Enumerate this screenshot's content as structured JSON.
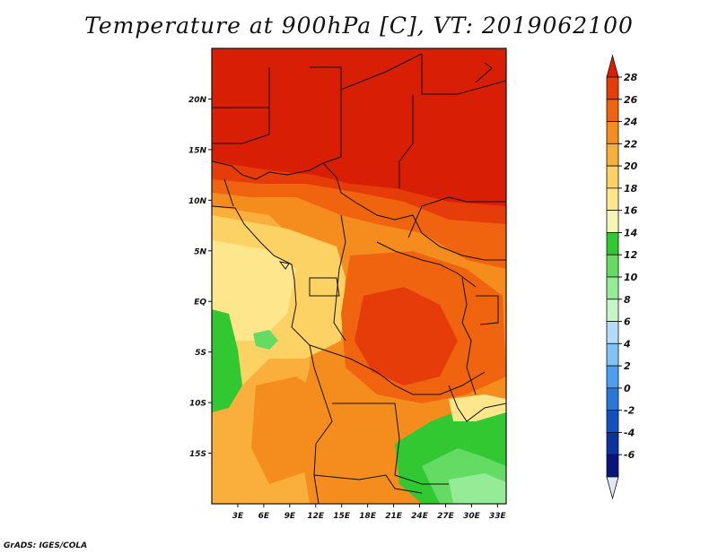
{
  "title": "Temperature at 900hPa [C], VT: 2019062100",
  "footer": "GrADS: IGES/COLA",
  "map": {
    "lon_range": [
      0,
      34
    ],
    "lat_range": [
      -20,
      25
    ],
    "lon_ticks": [
      "3E",
      "6E",
      "9E",
      "12E",
      "15E",
      "18E",
      "21E",
      "24E",
      "27E",
      "30E",
      "33E"
    ],
    "lat_ticks": [
      "20N",
      "15N",
      "10N",
      "5N",
      "EQ",
      "5S",
      "10S",
      "15S"
    ]
  },
  "colorbar": {
    "labels": [
      "28",
      "26",
      "24",
      "22",
      "20",
      "18",
      "16",
      "14",
      "12",
      "10",
      "8",
      "6",
      "4",
      "2",
      "0",
      "-2",
      "-4",
      "-6"
    ],
    "colors": [
      "#d81e05",
      "#e63c0a",
      "#f0640f",
      "#f58c1e",
      "#faaf3c",
      "#fcd264",
      "#fde68c",
      "#f5f5b4",
      "#32c832",
      "#64dc64",
      "#96eb96",
      "#c8f5c8",
      "#b4dcfa",
      "#82c3f5",
      "#4b9ef0",
      "#2878d7",
      "#1450be",
      "#0a32a0",
      "#0a147d",
      "#e6e6fa"
    ]
  }
}
